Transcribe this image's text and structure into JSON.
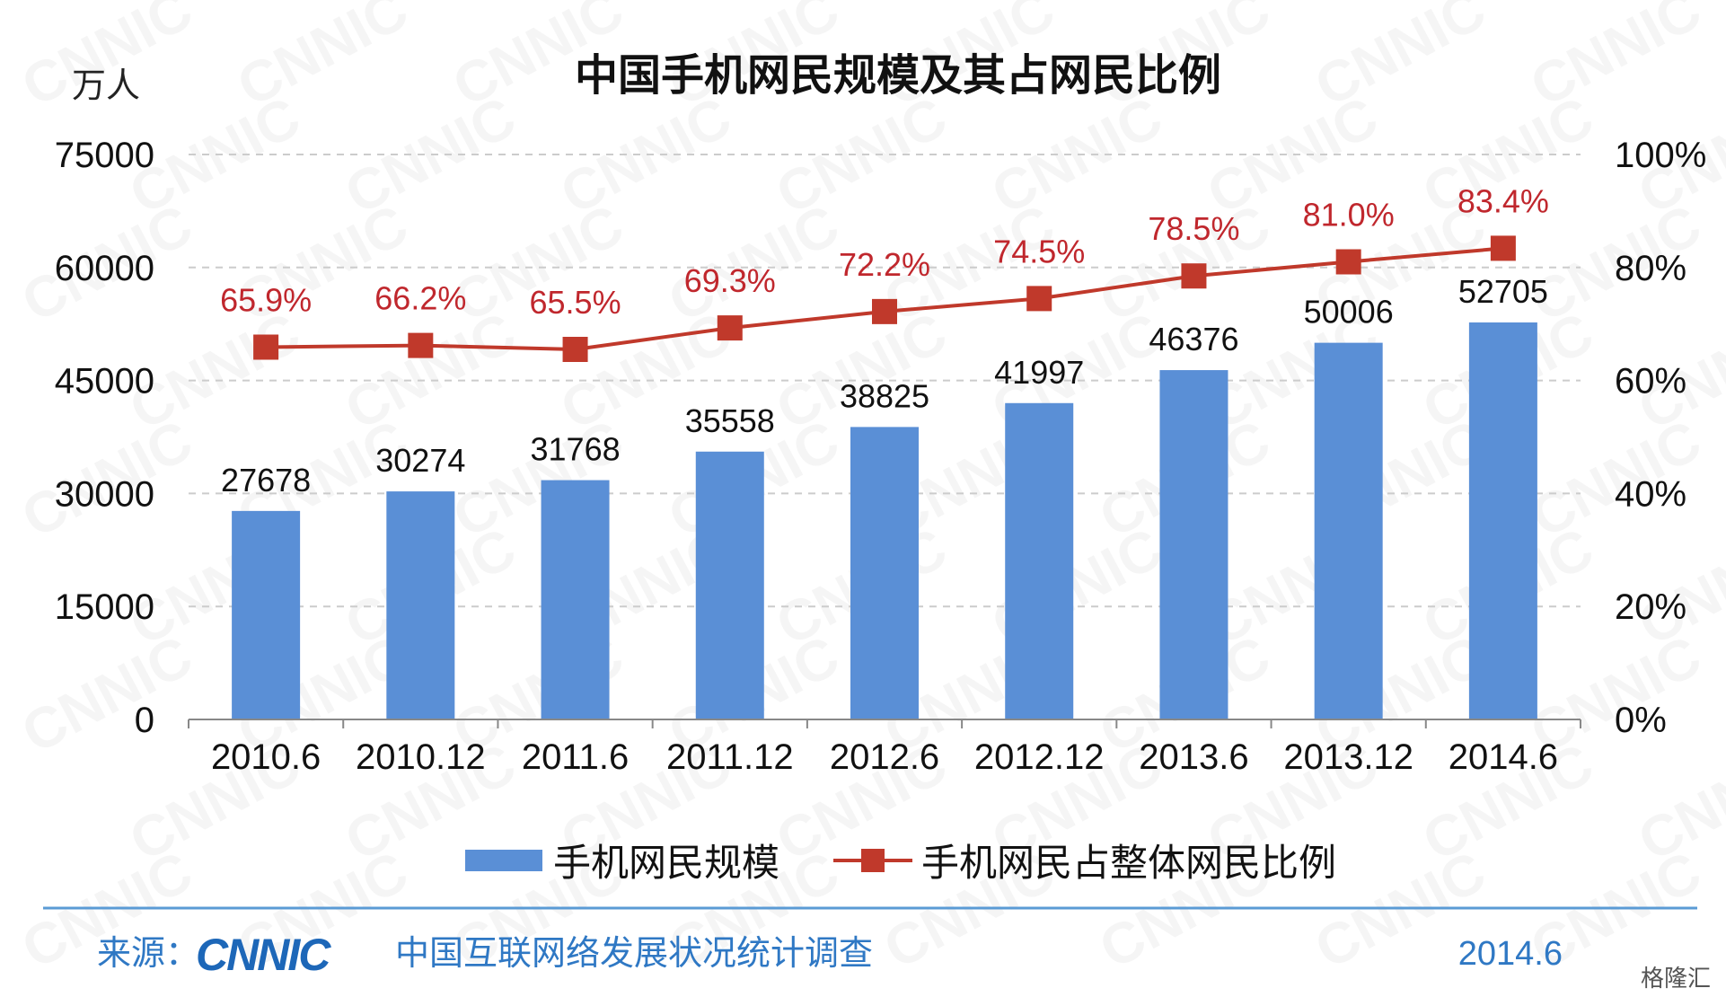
{
  "chart_data": {
    "type": "bar",
    "title": "中国手机网民规模及其占网民比例",
    "y_unit": "万人",
    "categories": [
      "2010.6",
      "2010.12",
      "2011.6",
      "2011.12",
      "2012.6",
      "2012.12",
      "2013.6",
      "2013.12",
      "2014.6"
    ],
    "series": [
      {
        "name": "手机网民规模",
        "type": "bar",
        "axis": "left",
        "color": "#5a8fd6",
        "values": [
          27678,
          30274,
          31768,
          35558,
          38825,
          41997,
          46376,
          50006,
          52705
        ]
      },
      {
        "name": "手机网民占整体网民比例",
        "type": "line",
        "axis": "right",
        "color": "#c0392b",
        "values": [
          65.9,
          66.2,
          65.5,
          69.3,
          72.2,
          74.5,
          78.5,
          81.0,
          83.4
        ],
        "labels": [
          "65.9%",
          "66.2%",
          "65.5%",
          "69.3%",
          "72.2%",
          "74.5%",
          "78.5%",
          "81.0%",
          "83.4%"
        ]
      }
    ],
    "y_left": {
      "min": 0,
      "max": 75000,
      "ticks": [
        "0",
        "15000",
        "30000",
        "45000",
        "60000",
        "75000"
      ]
    },
    "y_right": {
      "min": 0,
      "max": 100,
      "ticks": [
        "0%",
        "20%",
        "40%",
        "60%",
        "80%",
        "100%"
      ]
    },
    "grid": true,
    "legend_position": "bottom"
  },
  "footer": {
    "source_label": "来源：",
    "logo_text": "CNNIC",
    "source_text": "中国互联网络发展状况统计调查",
    "date": "2014.6"
  },
  "watermark": {
    "text": "CNNIC",
    "corner_text": "格隆汇"
  }
}
